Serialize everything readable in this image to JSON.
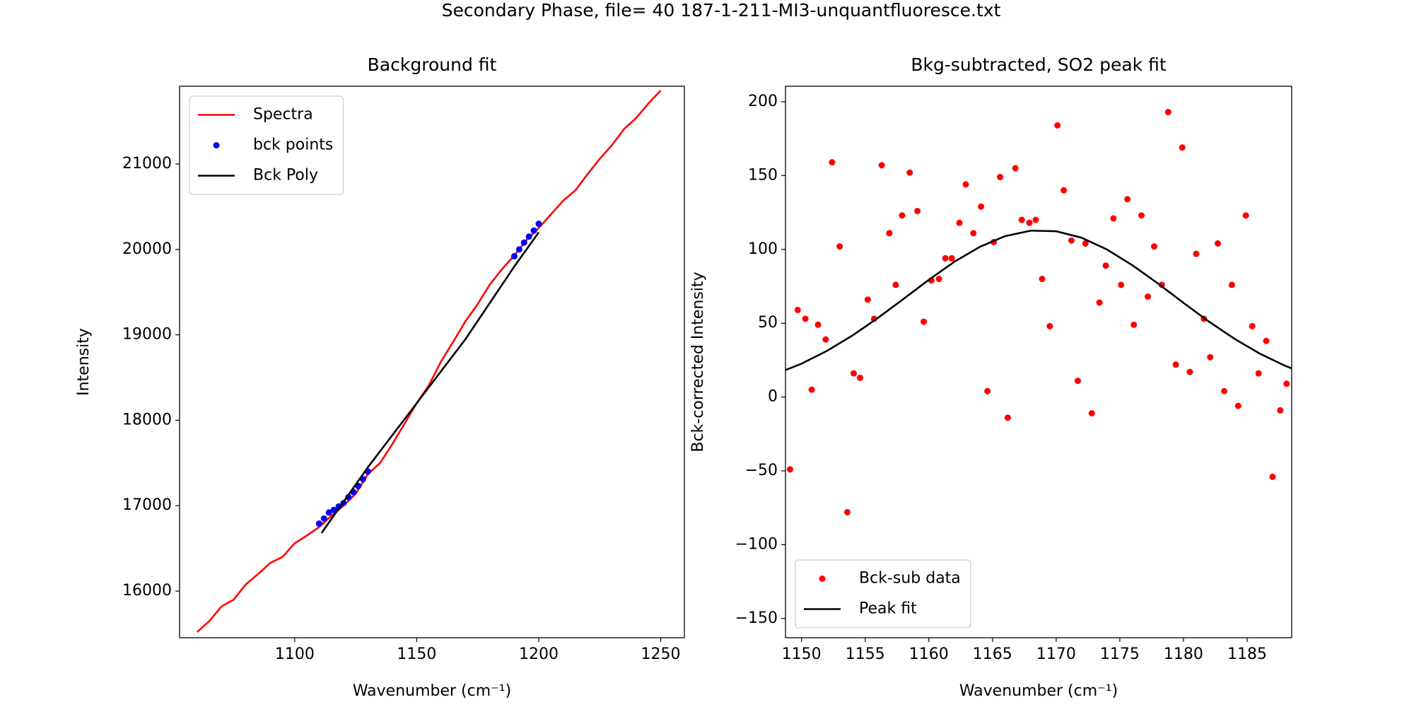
{
  "title": "Secondary Phase, file= 40 187-1-211-MI3-unquantfluoresce.txt",
  "chart_data": [
    {
      "type": "line",
      "title": "Background fit",
      "xlabel": "Wavenumber (cm⁻¹)",
      "ylabel": "Intensity",
      "xlim": [
        1052.8,
        1259.7
      ],
      "ylim": [
        15454,
        21910
      ],
      "xticks": [
        1100,
        1150,
        1200,
        1250
      ],
      "yticks": [
        16000,
        17000,
        18000,
        19000,
        20000,
        21000
      ],
      "legend": "upper left",
      "series": [
        {
          "name": "Spectra",
          "type": "line",
          "color": "#ff0000",
          "x": [
            1060,
            1065,
            1070,
            1075,
            1080,
            1085,
            1090,
            1095,
            1100,
            1105,
            1110,
            1115,
            1120,
            1125,
            1130,
            1135,
            1140,
            1145,
            1150,
            1155,
            1160,
            1165,
            1170,
            1175,
            1180,
            1185,
            1190,
            1195,
            1200,
            1205,
            1210,
            1215,
            1220,
            1225,
            1230,
            1235,
            1240,
            1245,
            1250
          ],
          "values": [
            15520,
            15650,
            15820,
            15900,
            16080,
            16200,
            16330,
            16400,
            16560,
            16650,
            16750,
            16880,
            17000,
            17140,
            17370,
            17500,
            17720,
            17960,
            18200,
            18410,
            18690,
            18920,
            19160,
            19360,
            19590,
            19770,
            19930,
            20110,
            20250,
            20410,
            20570,
            20690,
            20880,
            21060,
            21220,
            21410,
            21540,
            21710,
            21860
          ]
        },
        {
          "name": "bck points",
          "type": "scatter",
          "color": "#0000ff",
          "x": [
            1110,
            1112,
            1114,
            1116,
            1118,
            1120,
            1122,
            1124,
            1126,
            1128,
            1130,
            1190,
            1192,
            1194,
            1196,
            1198,
            1200
          ],
          "values": [
            16790,
            16850,
            16920,
            16950,
            16990,
            17030,
            17100,
            17160,
            17230,
            17310,
            17400,
            19920,
            20000,
            20080,
            20150,
            20220,
            20300
          ]
        },
        {
          "name": "Bck Poly",
          "type": "line",
          "color": "#000000",
          "x": [
            1111,
            1130,
            1150,
            1170,
            1190,
            1200
          ],
          "values": [
            16680,
            17450,
            18200,
            18950,
            19800,
            20200
          ]
        }
      ]
    },
    {
      "type": "line",
      "title": "Bkg-subtracted, SO2 peak fit",
      "xlabel": "Wavenumber (cm⁻¹)",
      "ylabel": "Bck-corrected Intensity",
      "xlim": [
        1148.74,
        1188.5
      ],
      "ylim": [
        -163,
        210.5
      ],
      "xticks": [
        1150,
        1155,
        1160,
        1165,
        1170,
        1175,
        1180,
        1185
      ],
      "yticks": [
        {
          "value": -150,
          "label": "−150"
        },
        {
          "value": -100,
          "label": "−100"
        },
        {
          "value": -50,
          "label": "−50"
        },
        0,
        50,
        100,
        150,
        200
      ],
      "legend": "lower left",
      "series": [
        {
          "name": "Bck-sub data",
          "type": "scatter",
          "color": "#ff0000",
          "x": [
            1149.1,
            1149.7,
            1150.3,
            1150.8,
            1151.3,
            1151.9,
            1152.4,
            1153.0,
            1153.6,
            1154.1,
            1154.6,
            1155.2,
            1155.7,
            1156.3,
            1156.9,
            1157.4,
            1157.9,
            1158.5,
            1159.1,
            1159.6,
            1160.2,
            1160.8,
            1161.3,
            1161.8,
            1162.4,
            1162.9,
            1163.5,
            1164.1,
            1164.6,
            1165.1,
            1165.6,
            1166.2,
            1166.8,
            1167.3,
            1167.9,
            1168.4,
            1168.9,
            1169.5,
            1170.1,
            1170.6,
            1171.2,
            1171.7,
            1172.3,
            1172.8,
            1173.4,
            1173.9,
            1174.5,
            1175.1,
            1175.6,
            1176.1,
            1176.7,
            1177.2,
            1177.7,
            1178.3,
            1178.8,
            1179.4,
            1179.9,
            1180.5,
            1181.0,
            1181.6,
            1182.1,
            1182.7,
            1183.2,
            1183.8,
            1184.3,
            1184.9,
            1185.4,
            1185.9,
            1186.5,
            1187.0,
            1187.6,
            1188.1
          ],
          "values": [
            -49,
            59,
            53,
            5,
            49,
            39,
            159,
            102,
            -78,
            16,
            13,
            66,
            53,
            157,
            111,
            76,
            123,
            152,
            126,
            51,
            79,
            80,
            94,
            94,
            118,
            144,
            111,
            129,
            4,
            105,
            149,
            -14,
            155,
            120,
            118,
            120,
            80,
            48,
            184,
            140,
            106,
            11,
            104,
            -11,
            64,
            89,
            121,
            76,
            134,
            49,
            123,
            68,
            102,
            76,
            193,
            22,
            169,
            17,
            97,
            53,
            27,
            104,
            4,
            76,
            -6,
            123,
            48,
            16,
            38,
            -54,
            -9,
            9
          ]
        },
        {
          "name": "Peak fit",
          "type": "line",
          "color": "#000000",
          "x": [
            1148,
            1150,
            1152,
            1154,
            1156,
            1158,
            1160,
            1162,
            1164,
            1166,
            1168,
            1170,
            1172,
            1174,
            1176,
            1178,
            1180,
            1182,
            1184,
            1186,
            1188,
            1190
          ],
          "values": [
            15.8,
            22.6,
            31.3,
            41.7,
            53.6,
            66.4,
            79.4,
            91.6,
            101.7,
            109.0,
            112.7,
            112.3,
            107.9,
            99.9,
            89.2,
            76.9,
            63.8,
            51.1,
            39.5,
            29.4,
            21.1,
            14.6
          ]
        }
      ]
    }
  ]
}
